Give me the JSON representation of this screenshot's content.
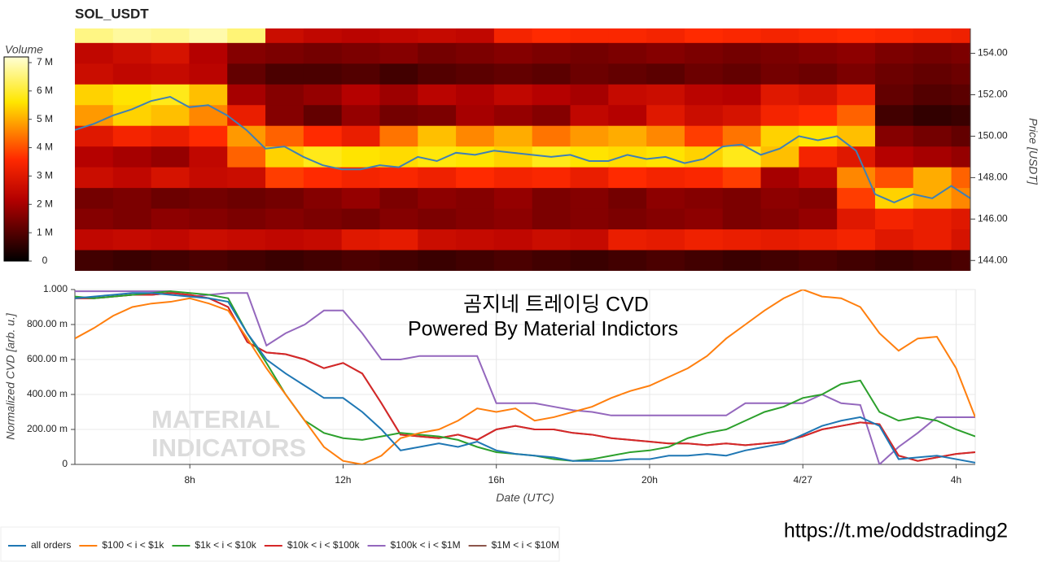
{
  "chart_data": [
    {
      "type": "heatmap",
      "title": "SOL_USDT",
      "colorbar_title": "Volume",
      "ylabel": "Price [USDT]",
      "x": [
        5,
        6,
        7,
        8,
        9,
        10,
        11,
        12,
        13,
        14,
        15,
        16,
        17,
        18,
        19,
        20,
        21,
        22,
        23,
        24,
        25,
        26,
        27,
        28
      ],
      "y": [
        155,
        154,
        153,
        152,
        151,
        150,
        149,
        148,
        147,
        146,
        145,
        144
      ],
      "z": [
        [
          6.6,
          6.8,
          6.7,
          6.9,
          6.5,
          2.6,
          2.4,
          2.3,
          2.4,
          2.5,
          2.4,
          3.4,
          3.6,
          3.5,
          3.5,
          3.4,
          3.6,
          3.5,
          3.4,
          3.5,
          3.6,
          3.5,
          3.4,
          3.3
        ],
        [
          2.4,
          2.6,
          2.8,
          2.2,
          1.6,
          1.5,
          1.4,
          1.5,
          1.6,
          1.4,
          1.5,
          1.6,
          1.5,
          1.4,
          1.5,
          1.6,
          1.5,
          1.4,
          1.5,
          1.6,
          1.7,
          1.5,
          1.4,
          1.5
        ],
        [
          2.6,
          2.4,
          2.5,
          2.3,
          1.2,
          0.9,
          0.9,
          1.0,
          0.8,
          1.0,
          1.1,
          1.2,
          1.1,
          1.3,
          1.2,
          1.1,
          1.3,
          1.2,
          1.4,
          1.3,
          1.5,
          1.3,
          1.2,
          1.3
        ],
        [
          5.4,
          5.6,
          5.8,
          5.2,
          2.0,
          1.6,
          1.8,
          2.2,
          1.9,
          2.3,
          2.1,
          2.4,
          2.2,
          2.0,
          2.5,
          2.6,
          2.3,
          2.2,
          3.0,
          2.8,
          3.3,
          1.2,
          1.0,
          1.1
        ],
        [
          4.8,
          5.4,
          5.2,
          4.6,
          3.2,
          1.6,
          1.2,
          1.8,
          1.4,
          1.5,
          2.0,
          1.8,
          1.6,
          2.4,
          2.2,
          3.0,
          2.6,
          2.8,
          3.4,
          3.6,
          4.2,
          0.8,
          0.6,
          0.7
        ],
        [
          3.0,
          3.4,
          3.2,
          3.6,
          4.8,
          4.2,
          3.6,
          3.2,
          4.4,
          5.2,
          4.6,
          5.0,
          4.4,
          4.8,
          5.0,
          4.6,
          3.8,
          4.4,
          5.4,
          5.6,
          5.2,
          1.6,
          1.4,
          1.2
        ],
        [
          2.2,
          2.0,
          1.8,
          2.4,
          4.2,
          5.4,
          5.8,
          5.6,
          5.5,
          5.7,
          5.6,
          5.4,
          5.8,
          5.6,
          5.5,
          5.6,
          5.4,
          5.8,
          5.2,
          3.4,
          3.0,
          2.2,
          2.0,
          1.8
        ],
        [
          2.6,
          2.4,
          2.8,
          2.5,
          2.6,
          3.8,
          3.6,
          3.4,
          3.5,
          3.3,
          3.6,
          3.4,
          3.5,
          3.2,
          3.6,
          3.4,
          3.5,
          3.8,
          2.0,
          2.4,
          4.6,
          4.0,
          5.0,
          4.2
        ],
        [
          1.4,
          1.5,
          1.3,
          1.4,
          1.3,
          1.4,
          1.6,
          1.8,
          1.5,
          1.7,
          1.6,
          1.8,
          1.5,
          1.6,
          1.4,
          1.7,
          1.6,
          1.5,
          1.7,
          1.6,
          3.8,
          5.4,
          5.0,
          4.6
        ],
        [
          1.6,
          1.5,
          1.7,
          1.6,
          1.5,
          1.6,
          1.5,
          1.4,
          1.6,
          1.5,
          1.6,
          1.7,
          1.5,
          1.6,
          1.5,
          1.6,
          1.7,
          1.5,
          1.6,
          1.8,
          3.0,
          3.4,
          3.2,
          3.0
        ],
        [
          2.4,
          2.5,
          2.4,
          2.6,
          2.5,
          2.4,
          2.5,
          3.0,
          3.1,
          2.6,
          2.5,
          2.4,
          2.6,
          2.5,
          3.2,
          3.1,
          3.3,
          3.2,
          3.1,
          3.2,
          3.4,
          3.0,
          3.2,
          2.8
        ],
        [
          0.8,
          0.7,
          0.8,
          0.9,
          0.8,
          0.7,
          0.8,
          0.9,
          0.8,
          0.7,
          0.8,
          0.9,
          0.8,
          0.7,
          0.8,
          0.9,
          0.8,
          0.7,
          0.8,
          0.9,
          0.8,
          0.7,
          0.8,
          0.9
        ]
      ],
      "zlim": [
        0,
        7.2
      ],
      "zticks": [
        0,
        {
          "value": 1,
          "label": "1 M"
        },
        {
          "value": 2,
          "label": "2 M"
        },
        {
          "value": 3,
          "label": "3 M"
        },
        {
          "value": 4,
          "label": "4 M"
        },
        {
          "value": 5,
          "label": "5 M"
        },
        {
          "value": 6,
          "label": "6 M"
        },
        {
          "value": 7,
          "label": "7 M"
        }
      ],
      "colorscale": [
        [
          0,
          "#000000"
        ],
        [
          0.3,
          "#b30000"
        ],
        [
          0.5,
          "#ff2a00"
        ],
        [
          0.62,
          "#ff7a00"
        ],
        [
          0.78,
          "#ffe600"
        ],
        [
          1,
          "#ffffd4"
        ]
      ],
      "xlim": [
        5,
        28.5
      ],
      "ylim": [
        143.5,
        155.2
      ],
      "yticks": [
        {
          "value": 144,
          "label": "144.00"
        },
        {
          "value": 146,
          "label": "146.00"
        },
        {
          "value": 148,
          "label": "148.00"
        },
        {
          "value": 150,
          "label": "150.00"
        },
        {
          "value": 152,
          "label": "152.00"
        },
        {
          "value": 154,
          "label": "154.00"
        }
      ],
      "price": {
        "color": "#3f80b5",
        "x": [
          5,
          5.5,
          6,
          6.5,
          7,
          7.5,
          8,
          8.5,
          9,
          9.5,
          10,
          10.5,
          11,
          11.5,
          12,
          12.5,
          13,
          13.5,
          14,
          14.5,
          15,
          15.5,
          16,
          16.5,
          17,
          17.5,
          18,
          18.5,
          19,
          19.5,
          20,
          20.5,
          21,
          21.5,
          22,
          22.5,
          23,
          23.5,
          24,
          24.5,
          25,
          25.5,
          26,
          26.5,
          27,
          27.5,
          28,
          28.5
        ],
        "values": [
          150.3,
          150.6,
          151.0,
          151.3,
          151.7,
          151.9,
          151.4,
          151.5,
          151.0,
          150.3,
          149.4,
          149.5,
          149.0,
          148.6,
          148.4,
          148.4,
          148.6,
          148.5,
          149.0,
          148.8,
          149.2,
          149.1,
          149.3,
          149.2,
          149.1,
          149.0,
          149.1,
          148.8,
          148.8,
          149.1,
          148.9,
          149.0,
          148.7,
          148.9,
          149.5,
          149.6,
          149.1,
          149.4,
          150.0,
          149.8,
          150.0,
          149.3,
          147.2,
          146.8,
          147.2,
          147.0,
          147.6,
          147.0
        ]
      }
    },
    {
      "type": "line",
      "xlabel": "Date (UTC)",
      "ylabel": "Normalized CVD [arb. u.]",
      "annotations": [
        "곰지네 트레이딩 CVD",
        "Powered By Material Indictors"
      ],
      "watermark": [
        "MATERIAL",
        "INDICATORS"
      ],
      "x": [
        5,
        5.5,
        6,
        6.5,
        7,
        7.5,
        8,
        8.5,
        9,
        9.5,
        10,
        10.5,
        11,
        11.5,
        12,
        12.5,
        13,
        13.5,
        14,
        14.5,
        15,
        15.5,
        16,
        16.5,
        17,
        17.5,
        18,
        18.5,
        19,
        19.5,
        20,
        20.5,
        21,
        21.5,
        22,
        22.5,
        23,
        23.5,
        24,
        24.5,
        25,
        25.5,
        26,
        26.5,
        27,
        27.5,
        28,
        28.5
      ],
      "xlim": [
        5,
        28.5
      ],
      "ylim": [
        0,
        1
      ],
      "xticks": [
        {
          "value": 8,
          "label": "8h"
        },
        {
          "value": 12,
          "label": "12h"
        },
        {
          "value": 16,
          "label": "16h"
        },
        {
          "value": 20,
          "label": "20h"
        },
        {
          "value": 24,
          "label": "4/27"
        },
        {
          "value": 28,
          "label": "4h"
        }
      ],
      "yticks": [
        0,
        {
          "value": 0.2,
          "label": "200.00 m"
        },
        {
          "value": 0.4,
          "label": "400.00 m"
        },
        {
          "value": 0.6,
          "label": "600.00 m"
        },
        {
          "value": 0.8,
          "label": "800.00 m"
        },
        {
          "value": 1,
          "label": "1.000"
        }
      ],
      "grid": true,
      "legend": "bottom-left",
      "series": [
        {
          "name": "all orders",
          "color": "#1f77b4",
          "values": [
            0.95,
            0.96,
            0.97,
            0.98,
            0.98,
            0.97,
            0.96,
            0.95,
            0.93,
            0.75,
            0.6,
            0.52,
            0.45,
            0.38,
            0.38,
            0.3,
            0.2,
            0.08,
            0.1,
            0.12,
            0.1,
            0.13,
            0.08,
            0.06,
            0.05,
            0.04,
            0.02,
            0.02,
            0.02,
            0.03,
            0.03,
            0.05,
            0.05,
            0.06,
            0.05,
            0.08,
            0.1,
            0.12,
            0.17,
            0.22,
            0.25,
            0.27,
            0.22,
            0.03,
            0.04,
            0.05,
            0.03,
            0.01
          ]
        },
        {
          "name": "$100 < i < $1k",
          "color": "#ff7f0e",
          "values": [
            0.72,
            0.78,
            0.85,
            0.9,
            0.92,
            0.93,
            0.95,
            0.92,
            0.88,
            0.72,
            0.55,
            0.4,
            0.25,
            0.1,
            0.02,
            0.0,
            0.05,
            0.15,
            0.18,
            0.2,
            0.25,
            0.32,
            0.3,
            0.32,
            0.25,
            0.27,
            0.3,
            0.33,
            0.38,
            0.42,
            0.45,
            0.5,
            0.55,
            0.62,
            0.72,
            0.8,
            0.88,
            0.95,
            1.0,
            0.96,
            0.95,
            0.9,
            0.75,
            0.65,
            0.72,
            0.73,
            0.55,
            0.27
          ]
        },
        {
          "name": "$1k < i < $10k",
          "color": "#2ca02c",
          "values": [
            0.96,
            0.95,
            0.96,
            0.97,
            0.98,
            0.99,
            0.98,
            0.97,
            0.95,
            0.75,
            0.58,
            0.4,
            0.25,
            0.18,
            0.15,
            0.14,
            0.16,
            0.18,
            0.17,
            0.16,
            0.14,
            0.1,
            0.07,
            0.06,
            0.05,
            0.03,
            0.02,
            0.03,
            0.05,
            0.07,
            0.08,
            0.1,
            0.15,
            0.18,
            0.2,
            0.25,
            0.3,
            0.33,
            0.38,
            0.4,
            0.46,
            0.48,
            0.3,
            0.25,
            0.27,
            0.25,
            0.2,
            0.16
          ]
        },
        {
          "name": "$10k < i < $100k",
          "color": "#d62728",
          "values": [
            0.95,
            0.95,
            0.96,
            0.97,
            0.97,
            0.98,
            0.97,
            0.95,
            0.9,
            0.7,
            0.64,
            0.63,
            0.6,
            0.55,
            0.58,
            0.52,
            0.35,
            0.17,
            0.16,
            0.15,
            0.17,
            0.14,
            0.2,
            0.22,
            0.2,
            0.2,
            0.18,
            0.17,
            0.15,
            0.14,
            0.13,
            0.12,
            0.12,
            0.11,
            0.12,
            0.11,
            0.12,
            0.13,
            0.16,
            0.2,
            0.22,
            0.24,
            0.23,
            0.05,
            0.02,
            0.04,
            0.06,
            0.07
          ]
        },
        {
          "name": "$100k < i < $1M",
          "color": "#9467bd",
          "values": [
            0.99,
            0.99,
            0.99,
            0.99,
            0.99,
            0.99,
            0.96,
            0.97,
            0.98,
            0.98,
            0.68,
            0.75,
            0.8,
            0.88,
            0.88,
            0.75,
            0.6,
            0.6,
            0.62,
            0.62,
            0.62,
            0.62,
            0.35,
            0.35,
            0.35,
            0.33,
            0.31,
            0.3,
            0.28,
            0.28,
            0.28,
            0.28,
            0.28,
            0.28,
            0.28,
            0.35,
            0.35,
            0.35,
            0.35,
            0.4,
            0.35,
            0.34,
            0.0,
            0.1,
            0.18,
            0.27,
            0.27,
            0.27
          ]
        },
        {
          "name": "$1M < i < $10M",
          "color": "#8c564b",
          "values": [
            0.95,
            0.95,
            0.96,
            0.97,
            0.97,
            0.98,
            0.97,
            0.95,
            0.9,
            0.7,
            0.64,
            0.63,
            0.6,
            0.55,
            0.58,
            0.52,
            0.35,
            0.17,
            0.16,
            0.15,
            0.17,
            0.14,
            0.2,
            0.22,
            0.2,
            0.2,
            0.18,
            0.17,
            0.15,
            0.14,
            0.13,
            0.12,
            0.12,
            0.11,
            0.12,
            0.11,
            0.12,
            0.13,
            0.16,
            0.2,
            0.22,
            0.24,
            0.23,
            0.05,
            0.02,
            0.04,
            0.06,
            0.07
          ]
        }
      ]
    }
  ],
  "footer_url": "https://t.me/oddstrading2"
}
